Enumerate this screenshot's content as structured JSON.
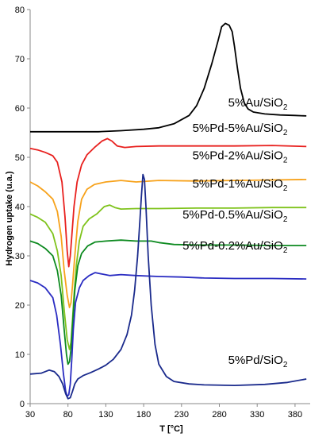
{
  "chart_data": {
    "type": "line",
    "title": "",
    "xlabel": "T [°C]",
    "ylabel": "Hydrogen uptake (u.a.)",
    "xlim": [
      30,
      400
    ],
    "ylim": [
      0,
      80
    ],
    "xticks": [
      30,
      80,
      130,
      180,
      230,
      280,
      330,
      380
    ],
    "yticks": [
      0,
      10,
      20,
      30,
      40,
      50,
      60,
      70,
      80
    ],
    "grid": false,
    "legend": "none",
    "series": [
      {
        "name": "5%Au/SiO2",
        "label_main": "5%Au/SiO",
        "label_sub": "2",
        "color": "#000000",
        "label_pos": [
          370,
          60.3
        ],
        "x": [
          30,
          80,
          120,
          150,
          180,
          200,
          220,
          240,
          250,
          260,
          270,
          278,
          283,
          288,
          293,
          297,
          300,
          304,
          308,
          313,
          318,
          325,
          340,
          360,
          380,
          395
        ],
        "y": [
          55.2,
          55.2,
          55.2,
          55.4,
          55.7,
          56.0,
          56.8,
          58.5,
          60.5,
          64.0,
          69.0,
          73.5,
          76.5,
          77.2,
          76.8,
          75.5,
          72.5,
          68.0,
          64.0,
          61.0,
          59.8,
          59.2,
          58.8,
          58.6,
          58.5,
          58.4
        ]
      },
      {
        "name": "5%Pd-5%Au/SiO2",
        "label_main": "5%Pd-5%Au/SiO",
        "label_sub": "2",
        "color": "#e8201e",
        "label_pos": [
          370,
          55.2
        ],
        "x": [
          30,
          40,
          50,
          60,
          66,
          72,
          76,
          79,
          81,
          83,
          85,
          88,
          92,
          98,
          105,
          115,
          125,
          132,
          138,
          145,
          155,
          170,
          200,
          250,
          300,
          350,
          395
        ],
        "y": [
          51.8,
          51.5,
          51.0,
          50.3,
          49.0,
          45.0,
          38.0,
          31.0,
          27.8,
          30.0,
          34.0,
          40.0,
          45.0,
          48.5,
          50.5,
          52.0,
          53.3,
          53.8,
          53.3,
          52.3,
          52.0,
          52.2,
          52.3,
          52.3,
          52.3,
          52.4,
          52.2
        ]
      },
      {
        "name": "5%Pd-2%Au/SiO2",
        "label_main": "5%Pd-2%Au/SiO",
        "label_sub": "2",
        "color": "#f7a21b",
        "label_pos": [
          370,
          49.6
        ],
        "x": [
          30,
          40,
          50,
          60,
          66,
          71,
          75,
          79,
          82,
          84,
          86,
          89,
          93,
          98,
          105,
          115,
          130,
          150,
          170,
          200,
          250,
          300,
          350,
          395
        ],
        "y": [
          45.0,
          44.2,
          43.0,
          41.5,
          39.0,
          34.0,
          27.0,
          22.0,
          19.5,
          20.5,
          24.0,
          30.0,
          37.0,
          41.5,
          43.5,
          44.5,
          45.0,
          45.3,
          45.0,
          45.3,
          45.2,
          45.3,
          45.4,
          45.5
        ]
      },
      {
        "name": "5%Pd-1%Au/SiO2",
        "label_main": "5%Pd-1%Au/SiO",
        "label_sub": "2",
        "color": "#7fc31c",
        "label_pos": [
          370,
          43.9
        ],
        "x": [
          30,
          40,
          50,
          60,
          66,
          71,
          75,
          79,
          82,
          84,
          86,
          88,
          91,
          95,
          100,
          108,
          118,
          128,
          135,
          142,
          150,
          170,
          200,
          250,
          300,
          350,
          395
        ],
        "y": [
          38.5,
          37.8,
          36.8,
          34.5,
          31.0,
          26.0,
          19.0,
          13.0,
          11.0,
          12.5,
          17.0,
          22.0,
          28.0,
          33.0,
          36.0,
          37.5,
          38.5,
          40.0,
          40.3,
          39.8,
          39.5,
          39.6,
          39.6,
          39.7,
          39.7,
          39.8,
          39.8
        ]
      },
      {
        "name": "5%Pd-0.5%Au/SiO2",
        "label_main": "5%Pd-0.5%Au/SiO",
        "label_sub": "2",
        "color": "#0d8a20",
        "label_pos": [
          370,
          37.6
        ],
        "x": [
          30,
          40,
          50,
          60,
          66,
          71,
          75,
          78,
          80,
          82,
          84,
          86,
          89,
          93,
          98,
          106,
          116,
          130,
          150,
          170,
          190,
          200,
          220,
          250,
          300,
          350,
          395
        ],
        "y": [
          33.0,
          32.5,
          31.5,
          30.0,
          27.0,
          22.0,
          15.0,
          10.0,
          8.0,
          8.5,
          11.0,
          16.0,
          23.0,
          28.0,
          30.5,
          32.0,
          32.8,
          33.0,
          33.2,
          33.0,
          33.0,
          32.7,
          32.3,
          32.2,
          32.2,
          32.1,
          32.1
        ]
      },
      {
        "name": "5%Pd-0.2%Au/SiO2",
        "label_main": "5%Pd-0.2%Au/SiO",
        "label_sub": "2",
        "color": "#2a2cc2",
        "label_pos": [
          370,
          31.3
        ],
        "x": [
          30,
          40,
          50,
          60,
          65,
          70,
          74,
          77,
          79,
          81,
          83,
          85,
          87,
          90,
          95,
          100,
          108,
          116,
          125,
          135,
          150,
          170,
          200,
          230,
          260,
          300,
          350,
          395
        ],
        "y": [
          25.0,
          24.5,
          23.5,
          21.5,
          18.0,
          12.0,
          6.0,
          2.5,
          1.5,
          1.8,
          4.0,
          9.0,
          15.0,
          20.5,
          23.5,
          25.0,
          26.0,
          26.6,
          26.3,
          26.0,
          26.2,
          26.0,
          25.8,
          25.7,
          25.5,
          25.4,
          25.4,
          25.3
        ]
      },
      {
        "name": "5%Pd/SiO2",
        "label_main": "5%Pd/SiO",
        "label_sub": "2",
        "color": "#1a2a8c",
        "label_pos": [
          370,
          8.1
        ],
        "x": [
          30,
          45,
          55,
          62,
          68,
          73,
          77,
          80,
          83,
          86,
          89,
          93,
          100,
          110,
          120,
          130,
          140,
          150,
          158,
          164,
          168,
          172,
          175,
          177,
          179,
          181,
          183,
          186,
          190,
          195,
          200,
          210,
          220,
          240,
          260,
          300,
          340,
          370,
          395
        ],
        "y": [
          6.0,
          6.2,
          6.8,
          6.5,
          5.5,
          4.0,
          2.0,
          1.0,
          1.2,
          2.5,
          4.0,
          5.0,
          5.7,
          6.3,
          7.0,
          7.8,
          9.0,
          11.0,
          14.0,
          18.0,
          23.0,
          30.0,
          37.0,
          42.0,
          46.5,
          45.5,
          40.0,
          30.0,
          20.0,
          12.0,
          8.0,
          5.5,
          4.5,
          4.0,
          3.8,
          3.7,
          3.9,
          4.3,
          5.0
        ]
      }
    ]
  }
}
